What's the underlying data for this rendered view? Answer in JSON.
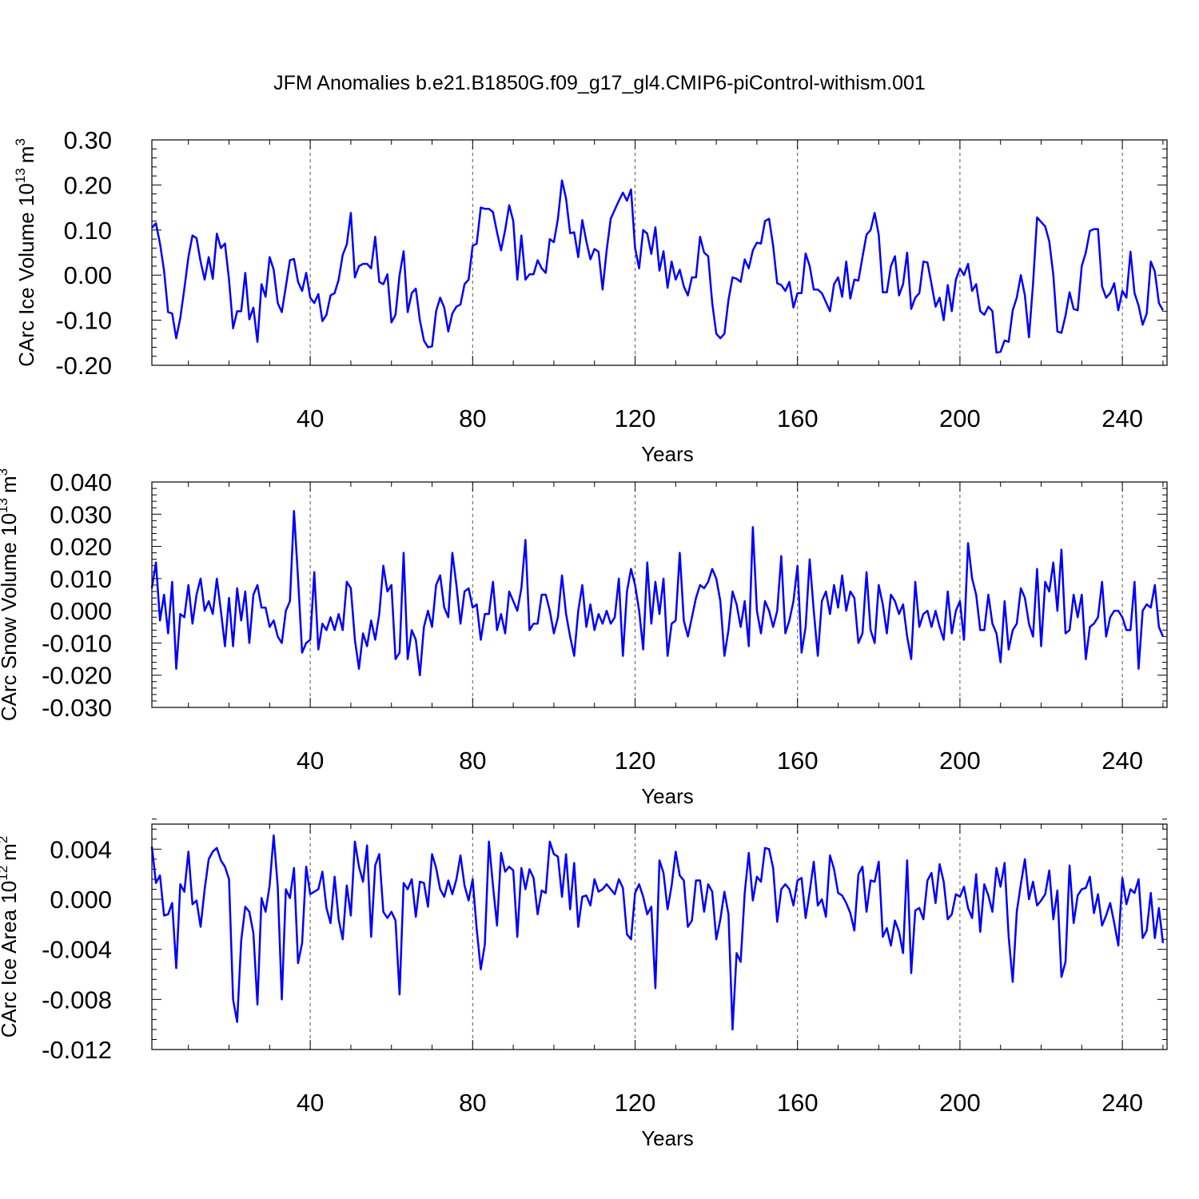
{
  "title": "JFM Anomalies b.e21.B1850G.f09_g17_gl4.CMIP6-piControl-withism.001",
  "line_color": "#0000ff",
  "chart_data": [
    {
      "type": "line",
      "ylabel": "CArc Ice Volume 10",
      "ylabel_exp": "13",
      "ylabel_unit": "m",
      "ylabel_unit_exp": "3",
      "xlabel": "Years",
      "xlim": [
        1,
        251
      ],
      "ylim": [
        -0.2,
        0.3
      ],
      "xticks": [
        40,
        80,
        120,
        160,
        200,
        240
      ],
      "xtick_labels": [
        "40",
        "80",
        "120",
        "160",
        "200",
        "240"
      ],
      "yticks": [
        -0.2,
        -0.1,
        0.0,
        0.1,
        0.2,
        0.3
      ],
      "ytick_labels": [
        "-0.20",
        "-0.10",
        "0.00",
        "0.10",
        "0.20",
        "0.30"
      ],
      "grid": "vertical dashed at major x ticks",
      "values": [
        0.105,
        0.115,
        0.07,
        0.01,
        -0.082,
        -0.085,
        -0.14,
        -0.095,
        -0.03,
        0.04,
        0.088,
        0.082,
        0.03,
        -0.01,
        0.04,
        -0.008,
        0.092,
        0.06,
        0.07,
        -0.01,
        -0.118,
        -0.08,
        -0.08,
        0.005,
        -0.098,
        -0.072,
        -0.148,
        -0.02,
        -0.048,
        0.04,
        0.012,
        -0.062,
        -0.082,
        -0.025,
        0.033,
        0.036,
        -0.015,
        -0.035,
        0.005,
        -0.05,
        -0.062,
        -0.042,
        -0.102,
        -0.088,
        -0.045,
        -0.04,
        -0.01,
        0.045,
        0.068,
        0.138,
        -0.005,
        0.02,
        0.025,
        0.025,
        0.015,
        0.085,
        -0.015,
        -0.02,
        0.002,
        -0.105,
        -0.088,
        0.0,
        0.053,
        -0.082,
        -0.04,
        -0.03,
        -0.1,
        -0.145,
        -0.16,
        -0.158,
        -0.08,
        -0.05,
        -0.072,
        -0.125,
        -0.085,
        -0.07,
        -0.065,
        -0.02,
        -0.01,
        0.065,
        0.07,
        0.15,
        0.147,
        0.147,
        0.14,
        0.095,
        0.055,
        0.1,
        0.155,
        0.12,
        -0.01,
        0.088,
        -0.01,
        0.002,
        0.002,
        0.033,
        0.015,
        0.005,
        0.08,
        0.073,
        0.125,
        0.21,
        0.17,
        0.093,
        0.095,
        0.04,
        0.122,
        0.075,
        0.035,
        0.058,
        0.052,
        -0.032,
        0.055,
        0.125,
        0.145,
        0.165,
        0.183,
        0.165,
        0.19,
        0.06,
        0.015,
        0.1,
        0.092,
        0.047,
        0.106,
        0.01,
        0.053,
        -0.028,
        0.03,
        -0.01,
        0.012,
        -0.025,
        -0.045,
        -0.005,
        -0.005,
        0.085,
        0.05,
        0.042,
        -0.062,
        -0.13,
        -0.14,
        -0.13,
        -0.055,
        -0.005,
        -0.008,
        -0.015,
        0.035,
        0.015,
        0.055,
        0.072,
        0.07,
        0.12,
        0.125,
        0.065,
        -0.018,
        -0.022,
        -0.035,
        -0.015,
        -0.072,
        -0.04,
        -0.04,
        0.048,
        0.02,
        -0.032,
        -0.032,
        -0.04,
        -0.06,
        -0.08,
        -0.02,
        -0.005,
        -0.048,
        0.03,
        -0.052,
        -0.01,
        -0.012,
        0.04,
        0.09,
        0.1,
        0.138,
        0.09,
        -0.038,
        -0.038,
        0.02,
        0.042,
        -0.045,
        -0.02,
        0.05,
        -0.075,
        -0.05,
        -0.04,
        0.03,
        0.028,
        -0.02,
        -0.07,
        -0.05,
        -0.1,
        -0.022,
        -0.08,
        -0.01,
        0.015,
        0.0,
        0.025,
        -0.035,
        -0.02,
        -0.08,
        -0.088,
        -0.07,
        -0.08,
        -0.172,
        -0.17,
        -0.145,
        -0.148,
        -0.078,
        -0.05,
        0.0,
        -0.045,
        -0.138,
        -0.02,
        0.128,
        0.118,
        0.108,
        0.075,
        0.0,
        -0.125,
        -0.128,
        -0.09,
        -0.038,
        -0.075,
        -0.078,
        0.02,
        0.05,
        0.098,
        0.102,
        0.102,
        -0.025,
        -0.05,
        -0.04,
        -0.018,
        -0.078,
        -0.035,
        -0.05,
        0.052,
        -0.04,
        -0.068,
        -0.11,
        -0.085,
        0.03,
        0.008,
        -0.062,
        -0.078
      ]
    },
    {
      "type": "line",
      "ylabel": "CArc Snow Volume 10",
      "ylabel_exp": "13",
      "ylabel_unit": "m",
      "ylabel_unit_exp": "3",
      "xlabel": "Years",
      "xlim": [
        1,
        251
      ],
      "ylim": [
        -0.03,
        0.04
      ],
      "xticks": [
        40,
        80,
        120,
        160,
        200,
        240
      ],
      "xtick_labels": [
        "40",
        "80",
        "120",
        "160",
        "200",
        "240"
      ],
      "yticks": [
        -0.03,
        -0.02,
        -0.01,
        0.0,
        0.01,
        0.02,
        0.03,
        0.04
      ],
      "ytick_labels": [
        "-0.030",
        "-0.020",
        "-0.010",
        "0.000",
        "0.010",
        "0.020",
        "0.030",
        "0.040"
      ],
      "grid": "vertical dashed at major x ticks",
      "values": [
        0.007,
        0.015,
        -0.003,
        0.005,
        -0.007,
        0.009,
        -0.018,
        -0.001,
        -0.002,
        0.008,
        -0.004,
        0.005,
        0.01,
        0.0,
        0.003,
        -0.001,
        0.01,
        0.0,
        -0.011,
        0.004,
        -0.011,
        0.007,
        -0.003,
        0.006,
        -0.01,
        0.005,
        0.008,
        0.001,
        0.001,
        -0.005,
        -0.003,
        -0.008,
        -0.01,
        0.0,
        0.003,
        0.031,
        0.01,
        -0.013,
        -0.01,
        -0.009,
        0.012,
        -0.012,
        -0.004,
        -0.006,
        -0.002,
        -0.006,
        -0.001,
        -0.006,
        0.009,
        0.007,
        -0.009,
        -0.018,
        -0.007,
        -0.011,
        -0.003,
        -0.009,
        -0.001,
        0.014,
        0.006,
        0.008,
        -0.015,
        -0.013,
        0.018,
        -0.015,
        -0.006,
        -0.009,
        -0.02,
        -0.005,
        0.0,
        -0.005,
        0.008,
        0.011,
        0.001,
        -0.002,
        0.018,
        0.008,
        -0.004,
        0.006,
        0.007,
        0.001,
        0.002,
        -0.009,
        -0.001,
        -0.001,
        0.009,
        -0.006,
        -0.001,
        -0.007,
        0.006,
        0.003,
        0.0,
        0.007,
        0.022,
        -0.006,
        -0.004,
        -0.004,
        0.005,
        0.005,
        0.0,
        -0.007,
        -0.002,
        0.011,
        -0.001,
        -0.008,
        -0.014,
        0.0,
        0.008,
        -0.005,
        0.002,
        -0.006,
        -0.001,
        -0.004,
        0.0,
        -0.004,
        -0.002,
        0.01,
        -0.014,
        0.006,
        0.013,
        0.008,
        0.0,
        -0.012,
        0.015,
        -0.004,
        0.009,
        -0.001,
        0.01,
        -0.014,
        -0.004,
        -0.003,
        0.018,
        -0.003,
        -0.008,
        -0.002,
        0.004,
        0.008,
        0.007,
        0.009,
        0.013,
        0.01,
        0.003,
        -0.014,
        -0.006,
        0.006,
        0.002,
        -0.005,
        0.003,
        -0.011,
        0.026,
        0.0,
        -0.007,
        0.003,
        0.0,
        -0.005,
        0.0,
        0.017,
        -0.007,
        -0.003,
        0.003,
        0.014,
        -0.013,
        -0.005,
        0.016,
        0.0,
        -0.014,
        0.003,
        0.006,
        -0.001,
        0.008,
        0.001,
        0.011,
        0.0,
        0.006,
        0.004,
        -0.01,
        -0.007,
        0.012,
        -0.006,
        -0.01,
        0.008,
        0.002,
        -0.007,
        0.005,
        0.003,
        -0.001,
        0.002,
        -0.008,
        -0.015,
        0.009,
        -0.005,
        -0.001,
        0.0,
        -0.005,
        0.0,
        -0.005,
        -0.009,
        0.006,
        -0.007,
        0.0,
        0.003,
        -0.009,
        0.021,
        0.01,
        0.005,
        -0.006,
        -0.006,
        0.005,
        -0.004,
        -0.007,
        -0.016,
        0.003,
        -0.012,
        -0.006,
        -0.004,
        0.007,
        0.004,
        -0.004,
        -0.008,
        0.013,
        -0.011,
        0.009,
        0.006,
        0.015,
        0.0,
        0.019,
        -0.007,
        -0.006,
        0.005,
        -0.002,
        0.005,
        -0.015,
        -0.005,
        -0.004,
        -0.002,
        0.009,
        -0.008,
        -0.002,
        0.0,
        0.0,
        -0.002,
        -0.006,
        -0.006,
        0.009,
        -0.018,
        0.0,
        0.002,
        0.001,
        0.008,
        -0.005,
        -0.008
      ]
    },
    {
      "type": "line",
      "ylabel": "CArc Ice Area 10",
      "ylabel_exp": "12",
      "ylabel_unit": "m",
      "ylabel_unit_exp": "2",
      "xlabel": "Years",
      "xlim": [
        1,
        251
      ],
      "ylim": [
        -0.012,
        0.006
      ],
      "xticks": [
        40,
        80,
        120,
        160,
        200,
        240
      ],
      "xtick_labels": [
        "40",
        "80",
        "120",
        "160",
        "200",
        "240"
      ],
      "yticks": [
        -0.012,
        -0.008,
        -0.004,
        0.0,
        0.004
      ],
      "ytick_labels": [
        "-0.012",
        "-0.008",
        "-0.004",
        "0.000",
        "0.004"
      ],
      "grid": "vertical dashed at major x ticks",
      "values": [
        0.0042,
        0.0013,
        0.0019,
        -0.0013,
        -0.0012,
        -0.0003,
        -0.0055,
        0.0012,
        0.0006,
        0.0038,
        -0.0004,
        -0.0001,
        -0.0022,
        0.0008,
        0.0032,
        0.0038,
        0.0041,
        0.0031,
        0.0026,
        0.0016,
        -0.008,
        -0.0098,
        -0.0033,
        -0.0006,
        -0.001,
        -0.0027,
        -0.0084,
        0.0001,
        -0.001,
        0.0011,
        0.0051,
        0.001,
        -0.008,
        0.0008,
        0.0001,
        0.0025,
        -0.0051,
        -0.0035,
        0.0026,
        0.0004,
        0.0006,
        0.0008,
        0.0022,
        -0.0007,
        -0.0019,
        0.0018,
        -0.0016,
        -0.0032,
        0.0011,
        -0.0013,
        0.0046,
        0.0026,
        0.0014,
        0.0043,
        -0.003,
        0.0027,
        0.0036,
        -0.001,
        -0.0015,
        -0.001,
        -0.0017,
        -0.0076,
        0.0013,
        0.0008,
        0.0016,
        -0.0014,
        0.0014,
        0.0013,
        -0.0006,
        0.0036,
        0.0025,
        0.0008,
        0.0002,
        0.0015,
        0.0004,
        0.0016,
        0.0035,
        0.0011,
        -0.0001,
        0.0016,
        -0.0024,
        -0.0056,
        -0.0036,
        0.0046,
        0.0011,
        -0.0021,
        0.0037,
        0.0022,
        0.0026,
        0.0023,
        -0.003,
        0.0025,
        0.0008,
        0.0024,
        0.0017,
        -0.0012,
        0.0007,
        0.0005,
        0.0046,
        0.0036,
        0.0034,
        0.0002,
        0.0036,
        -0.0008,
        0.0029,
        -0.0022,
        0.0002,
        0.0003,
        -0.0005,
        0.0016,
        0.0006,
        0.0008,
        0.0012,
        0.0008,
        0.0004,
        0.0016,
        0.0009,
        -0.0028,
        -0.0032,
        0.0005,
        0.0012,
        0.0002,
        -0.0012,
        -0.0006,
        -0.0071,
        0.0031,
        0.0021,
        -0.0008,
        0.0011,
        0.0038,
        0.0019,
        0.0015,
        -0.0022,
        -0.0017,
        0.0015,
        0.0015,
        -0.001,
        0.0012,
        0.0006,
        -0.0032,
        -0.0016,
        0.0006,
        -0.0012,
        -0.0104,
        -0.0043,
        -0.005,
        0.0005,
        0.0037,
        -0.0001,
        0.0018,
        0.0014,
        0.0041,
        0.004,
        0.0025,
        -0.0018,
        0.0008,
        0.0012,
        0.0008,
        -0.0005,
        0.0015,
        0.0017,
        -0.0015,
        0.0006,
        0.003,
        -0.0005,
        0.0,
        -0.0014,
        0.0035,
        0.0024,
        0.0005,
        0.0003,
        -0.0003,
        -0.0011,
        -0.0025,
        0.002,
        0.0026,
        -0.001,
        0.0015,
        0.0014,
        0.003,
        -0.003,
        -0.0023,
        -0.0037,
        -0.0017,
        -0.0026,
        -0.0043,
        0.0031,
        -0.0059,
        -0.0009,
        -0.0007,
        -0.0016,
        0.0015,
        0.0021,
        -0.0003,
        0.0028,
        0.0014,
        -0.0016,
        -0.0012,
        0.0004,
        0.0002,
        0.001,
        -0.0007,
        -0.0015,
        0.002,
        -0.0026,
        0.0012,
        0.0003,
        -0.001,
        0.0025,
        0.001,
        0.0029,
        -0.003,
        -0.0066,
        -0.001,
        0.0012,
        0.0032,
        0.0,
        0.0014,
        -0.0005,
        -0.0001,
        0.0004,
        0.0023,
        -0.0016,
        0.0007,
        -0.0062,
        -0.005,
        0.0027,
        -0.0019,
        0.0003,
        0.0008,
        0.0009,
        0.0018,
        -0.0011,
        0.0004,
        -0.0021,
        -0.0013,
        -0.0003,
        -0.0019,
        -0.0037,
        0.0017,
        -0.0004,
        0.0008,
        0.0005,
        0.0016,
        -0.0031,
        -0.0025,
        0.0005,
        -0.0031,
        -0.0007,
        -0.0035
      ]
    }
  ]
}
